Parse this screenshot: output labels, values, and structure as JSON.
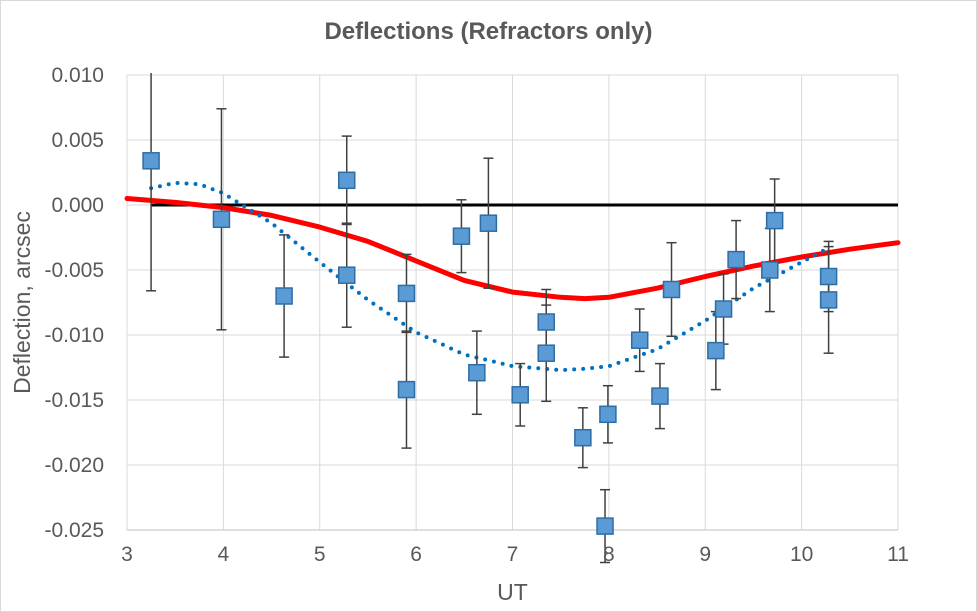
{
  "chart_data": {
    "type": "scatter",
    "title": "Deflections (Refractors only)",
    "xlabel": "UT",
    "ylabel": "Deflection, arcsec",
    "xlim": [
      3,
      11
    ],
    "ylim": [
      -0.025,
      0.01
    ],
    "xticks": [
      "3",
      "4",
      "5",
      "6",
      "7",
      "8",
      "9",
      "10",
      "11"
    ],
    "yticks": [
      "0.010",
      "0.005",
      "0.000",
      "-0.005",
      "-0.010",
      "-0.015",
      "-0.020",
      "-0.025"
    ],
    "grid": true,
    "legend": "none",
    "colors": {
      "markers": "#5b9bd5",
      "marker_edge": "#2e6da4",
      "model": "#ff0000",
      "trend": "#0070c0",
      "zero_line": "#000000",
      "grid": "#d9d9d9",
      "error_bars": "#404040"
    },
    "series": [
      {
        "type": "scatter_errorbars",
        "points": [
          {
            "x": 3.25,
            "y": 0.0034,
            "err": 0.01
          },
          {
            "x": 3.98,
            "y": -0.0011,
            "err": 0.0085
          },
          {
            "x": 4.63,
            "y": -0.007,
            "err": 0.0047
          },
          {
            "x": 5.28,
            "y": 0.0019,
            "err": 0.0034
          },
          {
            "x": 5.28,
            "y": -0.0054,
            "err": 0.004
          },
          {
            "x": 5.9,
            "y": -0.0068,
            "err": 0.003
          },
          {
            "x": 5.9,
            "y": -0.0142,
            "err": 0.0045
          },
          {
            "x": 6.47,
            "y": -0.0024,
            "err": 0.0028
          },
          {
            "x": 6.63,
            "y": -0.0129,
            "err": 0.0032
          },
          {
            "x": 6.75,
            "y": -0.0014,
            "err": 0.005
          },
          {
            "x": 7.08,
            "y": -0.0146,
            "err": 0.0024
          },
          {
            "x": 7.35,
            "y": -0.009,
            "err": 0.0025
          },
          {
            "x": 7.35,
            "y": -0.0114,
            "err": 0.0037
          },
          {
            "x": 7.73,
            "y": -0.0179,
            "err": 0.0023
          },
          {
            "x": 7.99,
            "y": -0.0161,
            "err": 0.0022
          },
          {
            "x": 7.96,
            "y": -0.0247,
            "err": 0.0028
          },
          {
            "x": 8.32,
            "y": -0.0104,
            "err": 0.0024
          },
          {
            "x": 8.53,
            "y": -0.0147,
            "err": 0.0025
          },
          {
            "x": 8.65,
            "y": -0.0065,
            "err": 0.0036
          },
          {
            "x": 9.11,
            "y": -0.0112,
            "err": 0.003
          },
          {
            "x": 9.19,
            "y": -0.008,
            "err": 0.0027
          },
          {
            "x": 9.32,
            "y": -0.0042,
            "err": 0.003
          },
          {
            "x": 9.67,
            "y": -0.005,
            "err": 0.0032
          },
          {
            "x": 9.72,
            "y": -0.0012,
            "err": 0.0032
          },
          {
            "x": 10.28,
            "y": -0.0055,
            "err": 0.0027
          },
          {
            "x": 10.28,
            "y": -0.0073,
            "err": 0.0041
          }
        ]
      },
      {
        "type": "line",
        "style": "solid",
        "x": [
          3.0,
          3.5,
          4.0,
          4.5,
          5.0,
          5.5,
          6.0,
          6.5,
          7.0,
          7.5,
          7.75,
          8.0,
          8.5,
          9.0,
          9.5,
          10.0,
          10.5,
          11.0
        ],
        "y": [
          0.0005,
          0.0002,
          -0.0002,
          -0.0008,
          -0.0017,
          -0.0028,
          -0.0043,
          -0.0058,
          -0.0067,
          -0.0071,
          -0.0072,
          -0.0071,
          -0.0064,
          -0.0055,
          -0.0047,
          -0.004,
          -0.0034,
          -0.0029
        ]
      },
      {
        "type": "line",
        "style": "dotted",
        "x": [
          3.25,
          3.5,
          3.75,
          4.0,
          4.5,
          5.0,
          5.5,
          6.0,
          6.5,
          7.0,
          7.5,
          7.75,
          8.0,
          8.5,
          9.0,
          9.5,
          10.0,
          10.28
        ],
        "y": [
          0.0013,
          0.0017,
          0.0016,
          0.0009,
          -0.0014,
          -0.0044,
          -0.0073,
          -0.0098,
          -0.0115,
          -0.0124,
          -0.0127,
          -0.0126,
          -0.0124,
          -0.0111,
          -0.0089,
          -0.0064,
          -0.0044,
          -0.0033
        ]
      },
      {
        "type": "line",
        "style": "solid",
        "x": [
          3.25,
          11.0
        ],
        "y": [
          0.0,
          0.0
        ]
      }
    ]
  }
}
